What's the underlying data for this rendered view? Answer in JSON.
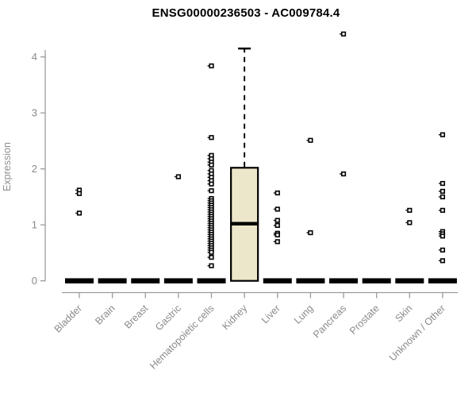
{
  "title": "ENSG00000236503 - AC009784.4",
  "chart_data": {
    "type": "boxplot",
    "title": "ENSG00000236503 - AC009784.4",
    "xlabel": "",
    "ylabel": "Expression",
    "ylim": [
      0,
      4.5
    ],
    "yticks": [
      0,
      1,
      2,
      3,
      4
    ],
    "grid": false,
    "legend": "none",
    "categories": [
      "Bladder",
      "Brain",
      "Breast",
      "Gastric",
      "Hematopoietic cells",
      "Kidney",
      "Liver",
      "Lung",
      "Pancreas",
      "Prostate",
      "Skin",
      "Unknown / Other"
    ],
    "series": [
      {
        "category": "Bladder",
        "box": {
          "q1": 0,
          "median": 0,
          "q3": 0,
          "whisker_low": 0,
          "whisker_high": 0
        },
        "points": [
          1.62,
          1.56,
          1.21
        ]
      },
      {
        "category": "Brain",
        "box": {
          "q1": 0,
          "median": 0,
          "q3": 0,
          "whisker_low": 0,
          "whisker_high": 0
        },
        "points": []
      },
      {
        "category": "Breast",
        "box": {
          "q1": 0,
          "median": 0,
          "q3": 0,
          "whisker_low": 0,
          "whisker_high": 0
        },
        "points": []
      },
      {
        "category": "Gastric",
        "box": {
          "q1": 0,
          "median": 0,
          "q3": 0,
          "whisker_low": 0,
          "whisker_high": 0
        },
        "points": [
          1.86
        ]
      },
      {
        "category": "Hematopoietic cells",
        "box": {
          "q1": 0,
          "median": 0,
          "q3": 0,
          "whisker_low": 0,
          "whisker_high": 0
        },
        "points": [
          3.84,
          2.56,
          2.24,
          2.18,
          2.12,
          2.07,
          1.97,
          1.91,
          1.85,
          1.79,
          1.73,
          1.61,
          1.47,
          1.43,
          1.39,
          1.35,
          1.31,
          1.27,
          1.23,
          1.19,
          1.15,
          1.11,
          1.07,
          1.03,
          0.99,
          0.95,
          0.91,
          0.87,
          0.83,
          0.79,
          0.75,
          0.71,
          0.67,
          0.63,
          0.59,
          0.55,
          0.51,
          0.42,
          0.27
        ]
      },
      {
        "category": "Kidney",
        "box": {
          "q1": 0,
          "median": 1.02,
          "q3": 2.02,
          "whisker_low": 0,
          "whisker_high": 4.15
        },
        "points": []
      },
      {
        "category": "Liver",
        "box": {
          "q1": 0,
          "median": 0,
          "q3": 0,
          "whisker_low": 0,
          "whisker_high": 0
        },
        "points": [
          1.57,
          1.28,
          1.08,
          0.99,
          0.85,
          0.82,
          0.7
        ]
      },
      {
        "category": "Lung",
        "box": {
          "q1": 0,
          "median": 0,
          "q3": 0,
          "whisker_low": 0,
          "whisker_high": 0
        },
        "points": [
          2.51,
          0.86
        ]
      },
      {
        "category": "Pancreas",
        "box": {
          "q1": 0,
          "median": 0,
          "q3": 0,
          "whisker_low": 0,
          "whisker_high": 0
        },
        "points": [
          4.41,
          1.91
        ]
      },
      {
        "category": "Prostate",
        "box": {
          "q1": 0,
          "median": 0,
          "q3": 0,
          "whisker_low": 0,
          "whisker_high": 0
        },
        "points": []
      },
      {
        "category": "Skin",
        "box": {
          "q1": 0,
          "median": 0,
          "q3": 0,
          "whisker_low": 0,
          "whisker_high": 0
        },
        "points": [
          1.26,
          1.04
        ]
      },
      {
        "category": "Unknown / Other",
        "box": {
          "q1": 0,
          "median": 0,
          "q3": 0,
          "whisker_low": 0,
          "whisker_high": 0
        },
        "points": [
          2.61,
          1.74,
          1.6,
          1.5,
          1.26,
          0.88,
          0.84,
          0.8,
          0.55,
          0.36
        ]
      }
    ],
    "colors": {
      "box_fill": "#ECE7CB",
      "box_stroke": "#000000",
      "median": "#000000",
      "point": "#000000",
      "axis": "#9b9b9b",
      "tick_label": "#8a8a8a",
      "title": "#000000"
    }
  }
}
